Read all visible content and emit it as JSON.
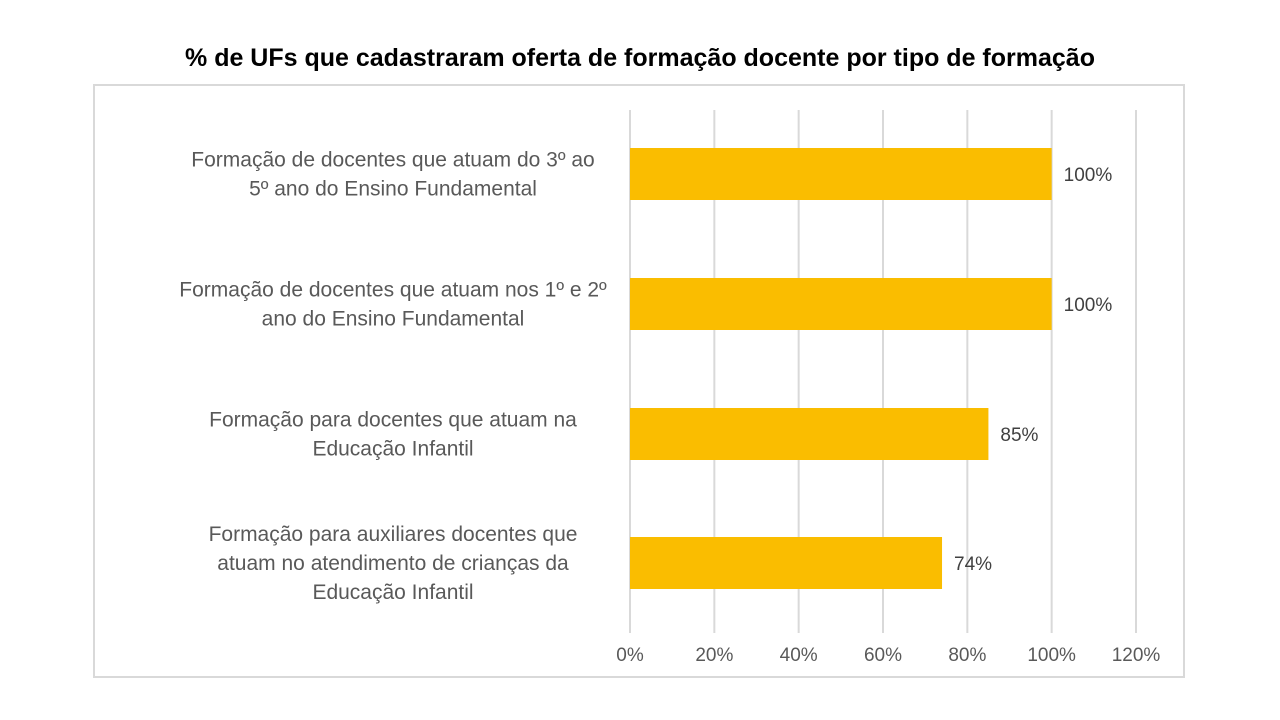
{
  "chart_data": {
    "type": "bar",
    "orientation": "horizontal",
    "title": "% de UFs que cadastraram oferta de formação docente por tipo de formação",
    "categories": [
      [
        "Formação de docentes que atuam do 3º ao",
        "5º ano do Ensino Fundamental"
      ],
      [
        "Formação de docentes que atuam nos 1º e 2º",
        "ano do Ensino Fundamental"
      ],
      [
        "Formação para docentes que atuam na",
        "Educação Infantil"
      ],
      [
        "Formação para auxiliares docentes que",
        "atuam no atendimento de crianças da",
        "Educação Infantil"
      ]
    ],
    "values": [
      100,
      100,
      85,
      74
    ],
    "data_labels": [
      "100%",
      "100%",
      "85%",
      "74%"
    ],
    "xlim": [
      0,
      120
    ],
    "xticks": [
      0,
      20,
      40,
      60,
      80,
      100,
      120
    ],
    "xtick_labels": [
      "0%",
      "20%",
      "40%",
      "60%",
      "80%",
      "100%",
      "120%"
    ],
    "xlabel": "",
    "ylabel": "",
    "grid": true,
    "bar_color": "#FABD00",
    "grid_color": "#D9D9D9"
  }
}
